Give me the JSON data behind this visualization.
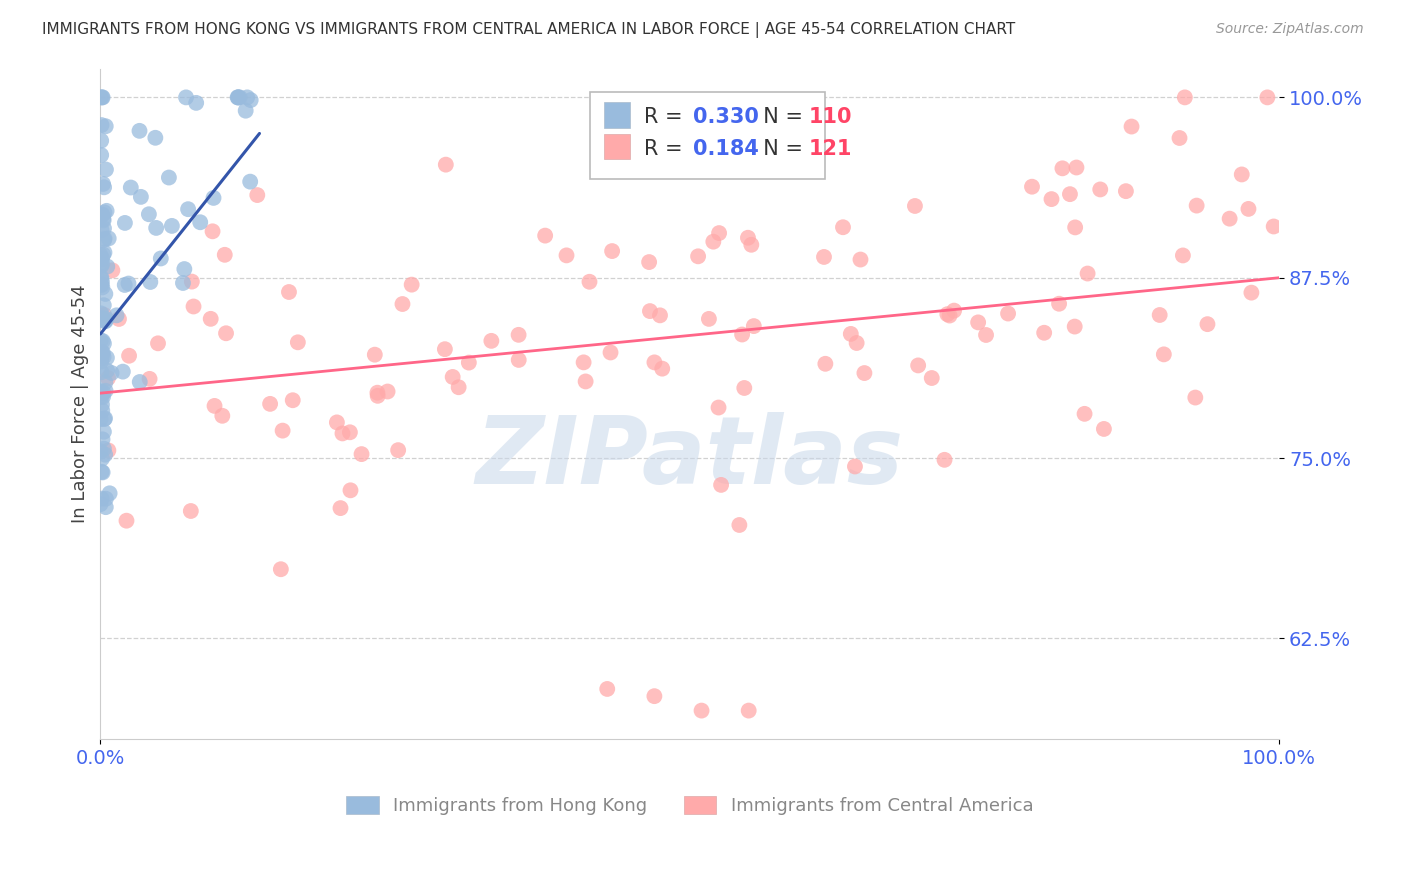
{
  "title": "IMMIGRANTS FROM HONG KONG VS IMMIGRANTS FROM CENTRAL AMERICA IN LABOR FORCE | AGE 45-54 CORRELATION CHART",
  "source": "Source: ZipAtlas.com",
  "ylabel": "In Labor Force | Age 45-54",
  "legend_label1": "Immigrants from Hong Kong",
  "legend_label2": "Immigrants from Central America",
  "r1": 0.33,
  "n1": 110,
  "r2": 0.184,
  "n2": 121,
  "color1": "#99BBDD",
  "color2": "#FFAAAA",
  "line_color1": "#3355AA",
  "line_color2": "#FF6688",
  "watermark": "ZIPatlas",
  "xlim": [
    0.0,
    1.0
  ],
  "ylim": [
    0.555,
    1.02
  ],
  "yticks": [
    0.625,
    0.75,
    0.875,
    1.0
  ],
  "ytick_labels": [
    "62.5%",
    "75.0%",
    "87.5%",
    "100.0%"
  ],
  "grid_color": "#CCCCCC",
  "background_color": "#FFFFFF",
  "tick_color": "#4466EE",
  "legend_r_color": "#4466EE",
  "legend_n_color": "#FF4466"
}
